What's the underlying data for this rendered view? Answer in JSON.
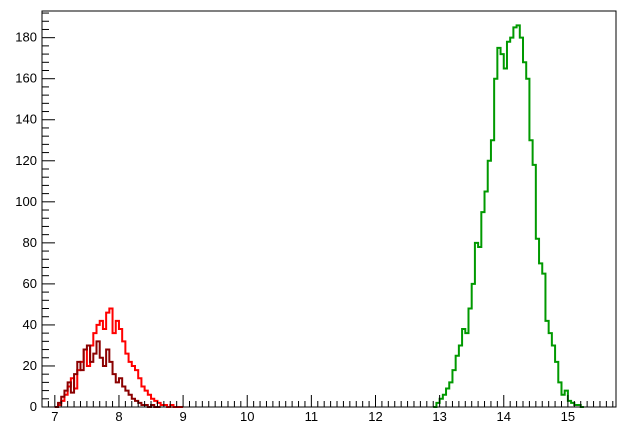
{
  "chart_data": {
    "type": "line",
    "title": "",
    "xlabel": "",
    "ylabel": "",
    "xlim": [
      6.8,
      15.75
    ],
    "ylim": [
      0,
      193
    ],
    "x_ticks": [
      7,
      8,
      9,
      10,
      11,
      12,
      13,
      14,
      15
    ],
    "y_ticks": [
      0,
      20,
      40,
      60,
      80,
      100,
      120,
      140,
      160,
      180
    ],
    "x_tick_labels": [
      "7",
      "8",
      "9",
      "10",
      "11",
      "12",
      "13",
      "14",
      "15"
    ],
    "y_tick_labels": [
      "0",
      "20",
      "40",
      "60",
      "80",
      "100",
      "120",
      "140",
      "160",
      "180"
    ],
    "grid": false,
    "legend": "none",
    "series": [
      {
        "color": "#ff0000",
        "x": [
          7.0,
          7.05,
          7.1,
          7.15,
          7.2,
          7.25,
          7.3,
          7.35,
          7.4,
          7.45,
          7.5,
          7.55,
          7.6,
          7.65,
          7.7,
          7.75,
          7.8,
          7.85,
          7.9,
          7.95,
          8.0,
          8.05,
          8.1,
          8.15,
          8.2,
          8.25,
          8.3,
          8.35,
          8.4,
          8.45,
          8.5,
          8.55,
          8.6,
          8.65,
          8.7,
          8.75,
          8.8,
          8.85,
          8.9,
          8.95
        ],
        "y": [
          0,
          1,
          3,
          6,
          10,
          14,
          9,
          18,
          22,
          28,
          20,
          30,
          36,
          40,
          42,
          38,
          46,
          48,
          36,
          42,
          38,
          32,
          26,
          22,
          20,
          18,
          14,
          10,
          8,
          6,
          4,
          3,
          2,
          1,
          1,
          0,
          1,
          0,
          0,
          0
        ]
      },
      {
        "color": "#8b0000",
        "x": [
          7.0,
          7.05,
          7.1,
          7.15,
          7.2,
          7.25,
          7.3,
          7.35,
          7.4,
          7.45,
          7.5,
          7.55,
          7.6,
          7.65,
          7.7,
          7.75,
          7.8,
          7.85,
          7.9,
          7.95,
          8.0,
          8.05,
          8.1,
          8.15,
          8.2,
          8.25,
          8.3,
          8.35,
          8.4,
          8.45,
          8.5,
          8.55,
          8.6
        ],
        "y": [
          0,
          2,
          5,
          8,
          12,
          7,
          16,
          22,
          18,
          28,
          30,
          22,
          26,
          32,
          24,
          20,
          28,
          22,
          16,
          12,
          14,
          10,
          8,
          6,
          4,
          3,
          2,
          1,
          1,
          0,
          1,
          0,
          0
        ]
      },
      {
        "color": "#009900",
        "x": [
          12.9,
          12.95,
          13.0,
          13.05,
          13.1,
          13.15,
          13.2,
          13.25,
          13.3,
          13.35,
          13.4,
          13.45,
          13.5,
          13.55,
          13.6,
          13.65,
          13.7,
          13.75,
          13.8,
          13.85,
          13.9,
          13.95,
          14.0,
          14.05,
          14.1,
          14.15,
          14.2,
          14.25,
          14.3,
          14.35,
          14.4,
          14.45,
          14.5,
          14.55,
          14.6,
          14.65,
          14.7,
          14.75,
          14.8,
          14.85,
          14.9,
          14.95,
          15.0,
          15.05,
          15.1,
          15.15,
          15.2
        ],
        "y": [
          0,
          2,
          4,
          6,
          9,
          12,
          18,
          25,
          30,
          38,
          36,
          48,
          60,
          80,
          78,
          95,
          105,
          120,
          130,
          160,
          175,
          172,
          165,
          178,
          180,
          185,
          186,
          180,
          168,
          160,
          130,
          118,
          82,
          70,
          65,
          42,
          36,
          30,
          22,
          12,
          6,
          8,
          3,
          2,
          1,
          1,
          0
        ]
      }
    ]
  }
}
